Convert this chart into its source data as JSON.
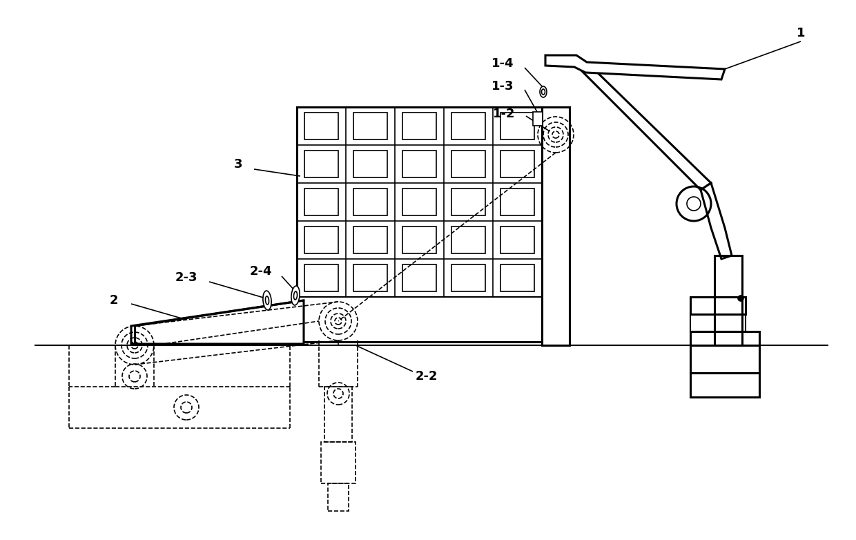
{
  "bg_color": "#ffffff",
  "line_color": "#000000",
  "lw_thick": 2.2,
  "lw_mid": 1.5,
  "lw_thin": 1.2,
  "label_fontsize": 13,
  "label_fontweight": "bold"
}
